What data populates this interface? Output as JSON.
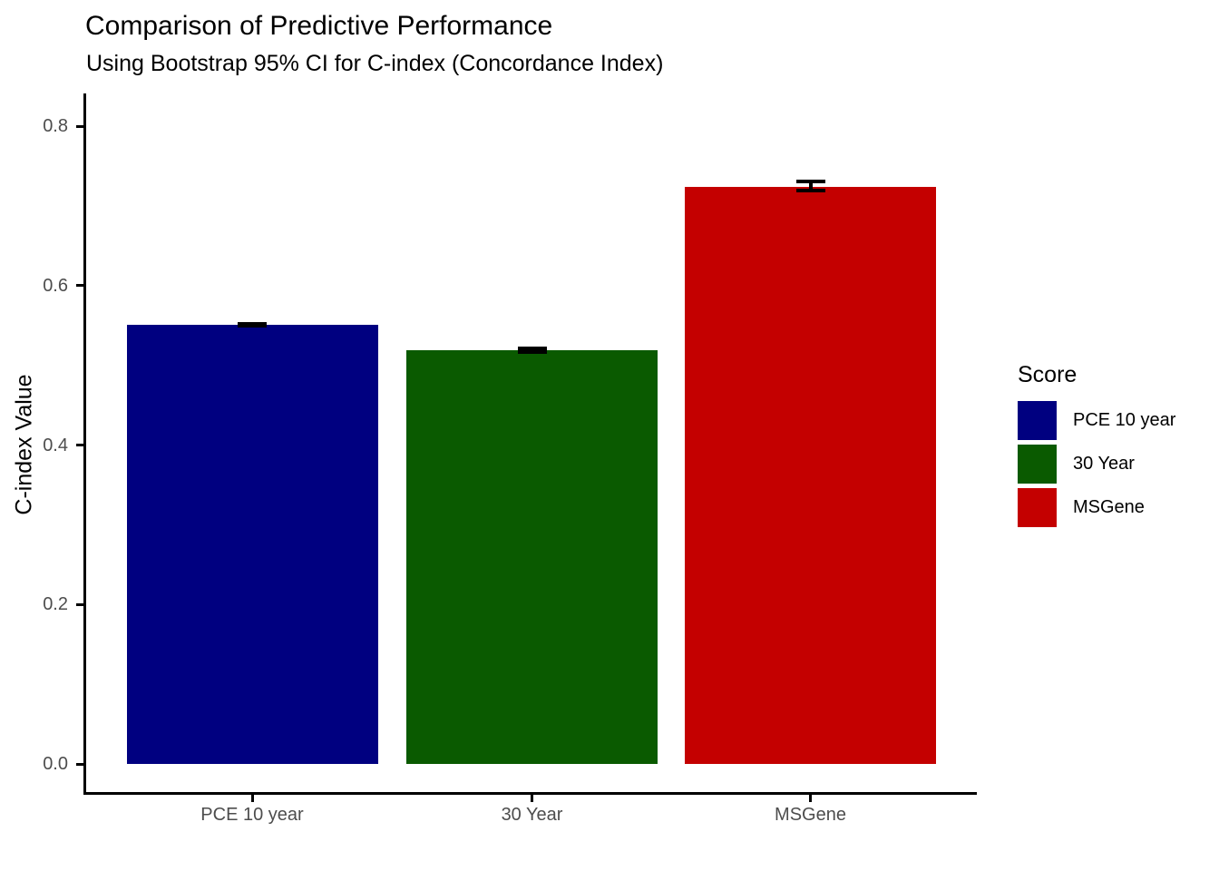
{
  "chart_data": {
    "type": "bar",
    "title": "Comparison of Predictive Performance",
    "subtitle": "Using Bootstrap 95% CI for C-index (Concordance Index)",
    "xlabel": "",
    "ylabel": "C-index Value",
    "categories": [
      "PCE 10 year",
      "30 Year",
      "MSGene"
    ],
    "values": [
      0.551,
      0.519,
      0.724
    ],
    "ci_95": [
      {
        "low": 0.55,
        "high": 0.552
      },
      {
        "low": 0.517,
        "high": 0.521
      },
      {
        "low": 0.719,
        "high": 0.731
      }
    ],
    "bar_colors": [
      "#000080",
      "#0A5A00",
      "#C40000"
    ],
    "ylim": [
      0,
      0.8
    ],
    "ytick_values": [
      0,
      0.2,
      0.4,
      0.6,
      0.8
    ],
    "ytick_labels": [
      "0.0",
      "0.2",
      "0.4",
      "0.6",
      "0.8"
    ],
    "grid": false,
    "error_bar_color": "#000000",
    "axis_line_color": "#000000",
    "axis_text_color": "#4D4D4D",
    "legend": {
      "title": "Score",
      "position": "right",
      "entries": [
        {
          "label": "PCE 10 year",
          "color": "#000080"
        },
        {
          "label": "30 Year",
          "color": "#0A5A00"
        },
        {
          "label": "MSGene",
          "color": "#C40000"
        }
      ]
    }
  }
}
